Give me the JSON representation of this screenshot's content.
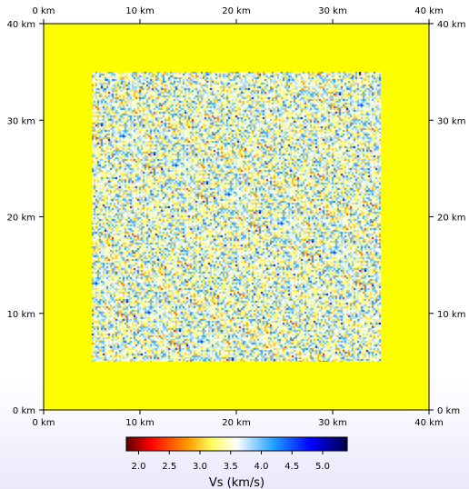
{
  "map": {
    "x_range_km": [
      0,
      40
    ],
    "y_range_km": [
      0,
      40
    ],
    "x_ticks": [
      {
        "value": 0,
        "label": "0 km"
      },
      {
        "value": 10,
        "label": "10 km"
      },
      {
        "value": 20,
        "label": "20 km"
      },
      {
        "value": 30,
        "label": "30 km"
      },
      {
        "value": 40,
        "label": "40 km"
      }
    ],
    "y_ticks": [
      {
        "value": 0,
        "label": "0 km"
      },
      {
        "value": 10,
        "label": "10 km"
      },
      {
        "value": 20,
        "label": "20 km"
      },
      {
        "value": 30,
        "label": "30 km"
      },
      {
        "value": 40,
        "label": "40 km"
      }
    ],
    "background_vs": 3.4,
    "background_color": "#ffff00",
    "heterogeneous_region_km": {
      "x": [
        5,
        35
      ],
      "y": [
        5,
        35
      ]
    },
    "heterogeneous_vs_range": [
      1.9,
      5.3
    ]
  },
  "colorbar": {
    "title": "Vs (km/s)",
    "range": [
      1.8,
      5.4
    ],
    "ticks": [
      "2.0",
      "2.5",
      "3.0",
      "3.5",
      "4.0",
      "4.5",
      "5.0"
    ],
    "tick_values": [
      2.0,
      2.5,
      3.0,
      3.5,
      4.0,
      4.5,
      5.0
    ],
    "color_stops": [
      {
        "value": 1.8,
        "color": "#5a0000"
      },
      {
        "value": 2.2,
        "color": "#ff0000"
      },
      {
        "value": 2.8,
        "color": "#ff9a00"
      },
      {
        "value": 3.2,
        "color": "#ffff60"
      },
      {
        "value": 3.6,
        "color": "#ffffff"
      },
      {
        "value": 4.2,
        "color": "#20a0ff"
      },
      {
        "value": 4.8,
        "color": "#0000ff"
      },
      {
        "value": 5.4,
        "color": "#00004a"
      }
    ]
  }
}
